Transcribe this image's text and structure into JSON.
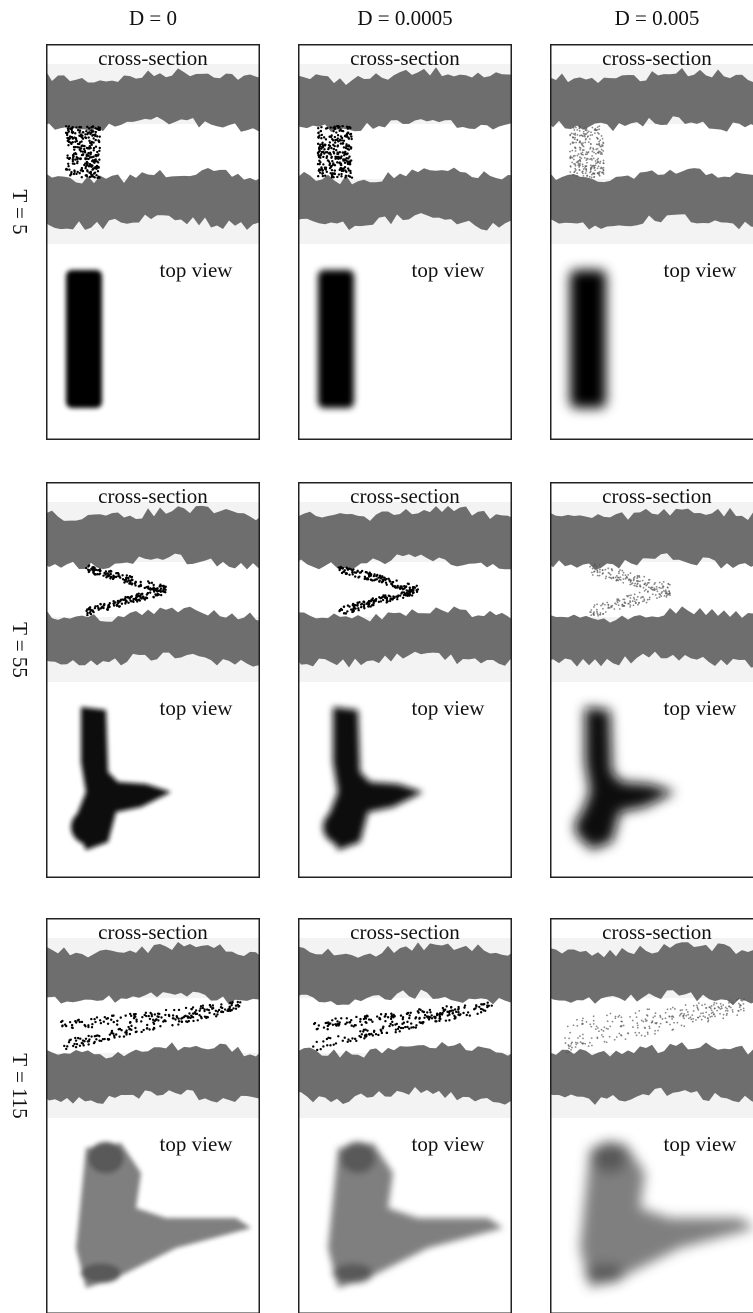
{
  "columns": [
    "D = 0",
    "D = 0.0005",
    "D = 0.005"
  ],
  "rows": [
    {
      "label": "T = 5",
      "panels": [
        {
          "cross": "cross-section",
          "top": "top view"
        },
        {
          "cross": "cross-section",
          "top": "top view"
        },
        {
          "cross": "cross-section",
          "top": "top view"
        }
      ]
    },
    {
      "label": "T = 55",
      "panels": [
        {
          "cross": "cross-section",
          "top": "top view"
        },
        {
          "cross": "cross-section",
          "top": "top view"
        },
        {
          "cross": "cross-section",
          "top": "top view"
        }
      ]
    },
    {
      "label": "T = 115",
      "panels": [
        {
          "cross": "cross-section",
          "top": "top view"
        },
        {
          "cross": "cross-section",
          "top": "top view"
        },
        {
          "cross": "cross-section",
          "top": "top view"
        }
      ]
    }
  ]
}
